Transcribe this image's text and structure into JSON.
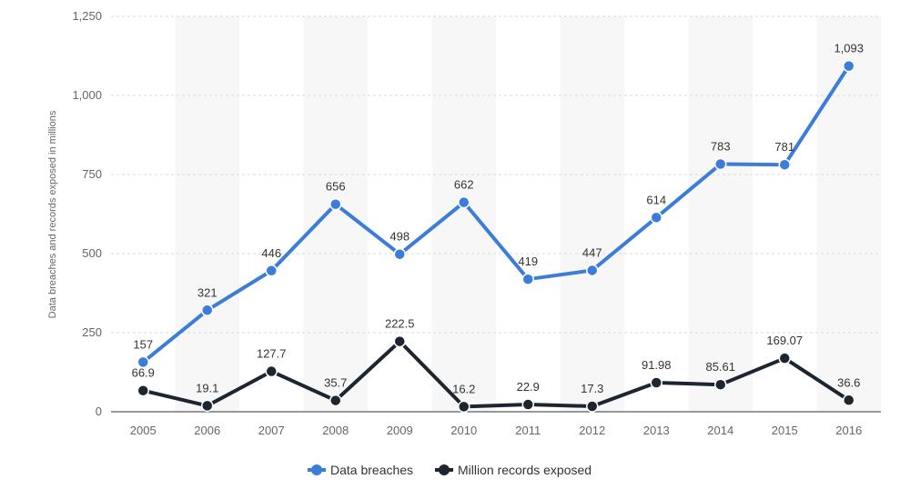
{
  "chart_data": {
    "type": "line",
    "categories": [
      "2005",
      "2006",
      "2007",
      "2008",
      "2009",
      "2010",
      "2011",
      "2012",
      "2013",
      "2014",
      "2015",
      "2016"
    ],
    "series": [
      {
        "name": "Data breaches",
        "color": "#3b7dd8",
        "values": [
          157,
          321,
          446,
          656,
          498,
          662,
          419,
          447,
          614,
          783,
          781,
          1093
        ],
        "labels": [
          "157",
          "321",
          "446",
          "656",
          "498",
          "662",
          "419",
          "447",
          "614",
          "783",
          "781",
          "1,093"
        ]
      },
      {
        "name": "Million records exposed",
        "color": "#1c2530",
        "values": [
          66.9,
          19.1,
          127.7,
          35.7,
          222.5,
          16.2,
          22.9,
          17.3,
          91.98,
          85.61,
          169.07,
          36.6
        ],
        "labels": [
          "66.9",
          "19.1",
          "127.7",
          "35.7",
          "222.5",
          "16.2",
          "22.9",
          "17.3",
          "91.98",
          "85.61",
          "169.07",
          "36.6"
        ]
      }
    ],
    "ylabel": "Data breaches and records exposed in millions",
    "ylim": [
      0,
      1250
    ],
    "yticks": [
      0,
      250,
      500,
      750,
      1000,
      1250
    ],
    "ytick_labels": [
      "0",
      "250",
      "500",
      "750",
      "1,000",
      "1,250"
    ],
    "grid": true,
    "legend_position": "bottom"
  }
}
